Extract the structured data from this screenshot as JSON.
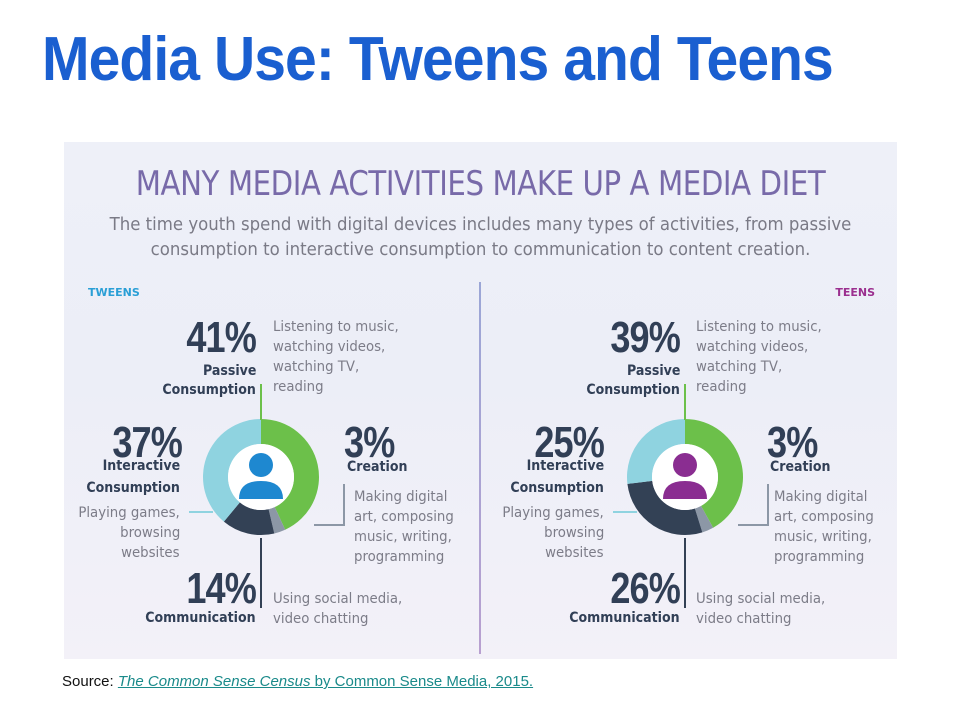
{
  "slide_title": "Media Use: Tweens and Teens",
  "source": {
    "prefix": "Source: ",
    "link_title": "The Common Sense Census",
    "link_rest": " by Common Sense Media, 2015."
  },
  "chart_data": {
    "type": "pie",
    "title": "MANY MEDIA ACTIVITIES MAKE UP A MEDIA DIET",
    "subtitle_line1": "The time youth spend with digital devices includes many types of activities, from passive",
    "subtitle_line2": "consumption to interactive consumption to communication to content creation.",
    "colors": {
      "passive": "#6cc04a",
      "creation": "#8c97a6",
      "communication": "#334155",
      "interactive": "#8fd3e0",
      "tweens_icon": "#1e88d0",
      "teens_icon": "#8a2d91"
    },
    "groups": [
      {
        "key": "tweens",
        "label": "TWEENS",
        "slices": [
          {
            "key": "passive",
            "value": 41,
            "value_label": "41%",
            "name": "Passive Consumption",
            "name_line1": "Passive",
            "name_line2": "Consumption",
            "desc": [
              "Listening to music,",
              "watching videos,",
              "watching TV,",
              "reading"
            ]
          },
          {
            "key": "creation",
            "value": 3,
            "value_label": "3%",
            "name": "Creation",
            "desc": [
              "Making digital",
              "art, composing",
              "music, writing,",
              "programming"
            ]
          },
          {
            "key": "communication",
            "value": 14,
            "value_label": "14%",
            "name": "Communication",
            "desc": [
              "Using social media,",
              "video chatting"
            ]
          },
          {
            "key": "interactive",
            "value": 37,
            "value_label": "37%",
            "name": "Interactive Consumption",
            "name_line1": "Interactive",
            "name_line2": "Consumption",
            "desc": [
              "Playing games,",
              "browsing",
              "websites"
            ]
          }
        ]
      },
      {
        "key": "teens",
        "label": "TEENS",
        "slices": [
          {
            "key": "passive",
            "value": 39,
            "value_label": "39%",
            "name": "Passive Consumption",
            "name_line1": "Passive",
            "name_line2": "Consumption",
            "desc": [
              "Listening to music,",
              "watching videos,",
              "watching TV,",
              "reading"
            ]
          },
          {
            "key": "creation",
            "value": 3,
            "value_label": "3%",
            "name": "Creation",
            "desc": [
              "Making digital",
              "art, composing",
              "music, writing,",
              "programming"
            ]
          },
          {
            "key": "communication",
            "value": 26,
            "value_label": "26%",
            "name": "Communication",
            "desc": [
              "Using social media,",
              "video chatting"
            ]
          },
          {
            "key": "interactive",
            "value": 25,
            "value_label": "25%",
            "name": "Interactive Consumption",
            "name_line1": "Interactive",
            "name_line2": "Consumption",
            "desc": [
              "Playing games,",
              "browsing",
              "websites"
            ]
          }
        ]
      }
    ]
  }
}
